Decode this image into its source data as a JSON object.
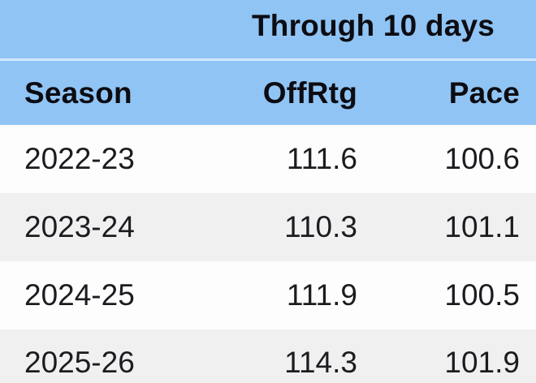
{
  "table": {
    "banner": "Through 10 days",
    "columns": {
      "season": "Season",
      "offrtg": "OffRtg",
      "pace": "Pace"
    },
    "rows": [
      {
        "season": "2022-23",
        "offrtg": "111.6",
        "pace": "100.6"
      },
      {
        "season": "2023-24",
        "offrtg": "110.3",
        "pace": "101.1"
      },
      {
        "season": "2024-25",
        "offrtg": "111.9",
        "pace": "100.5"
      },
      {
        "season": "2025-26",
        "offrtg": "114.3",
        "pace": "101.9"
      }
    ],
    "colors": {
      "header_blue": "#90c4f4",
      "separator_line": "#d3e6fb",
      "row_white": "#fdfdfe",
      "row_gray": "#f0f0f1",
      "header_text": "#0c0c12",
      "data_text": "#1c1c20"
    }
  },
  "chart_data": {
    "type": "table",
    "title": "Through 10 days",
    "columns": [
      "Season",
      "OffRtg",
      "Pace"
    ],
    "rows": [
      [
        "2022-23",
        111.6,
        100.6
      ],
      [
        "2023-24",
        110.3,
        101.1
      ],
      [
        "2024-25",
        111.9,
        100.5
      ],
      [
        "2025-26",
        114.3,
        101.9
      ]
    ],
    "layout_hints": {
      "numeric_columns_alignment": "right",
      "zebra_striping": true,
      "header_background": "#90c4f4"
    }
  }
}
